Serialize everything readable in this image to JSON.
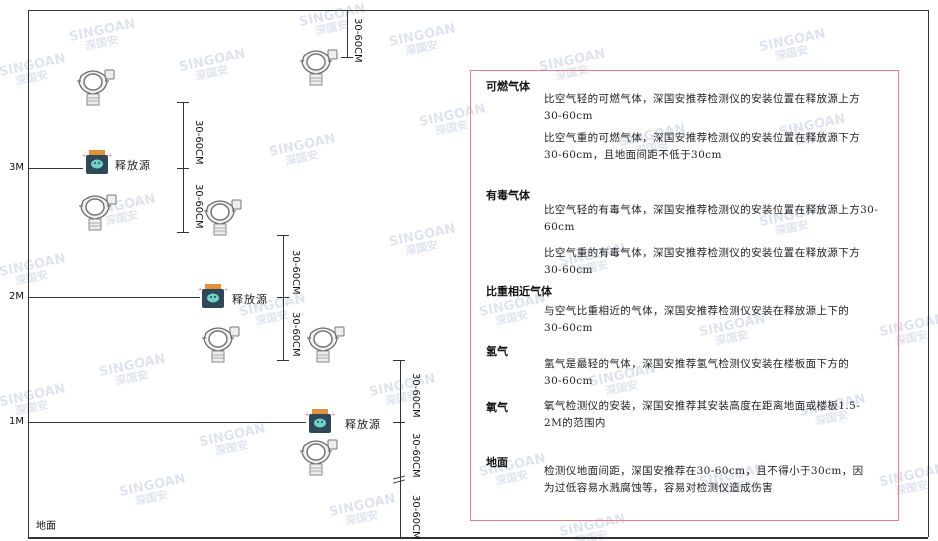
{
  "watermark": {
    "brand": "SINGOAN",
    "cn": "深国安"
  },
  "levels": [
    "3M",
    "2M",
    "1M"
  ],
  "ground_label": "地面",
  "source_label": "释放源",
  "dimension_label": "30-60CM",
  "notes": {
    "combustible": {
      "title": "可燃气体",
      "lighter": "比空气轻的可燃气体，深国安推荐检测仪的安装位置在释放源上方30-60cm",
      "heavier": "比空气重的可燃气体，深国安推荐检测仪的安装位置在释放源下方30-60cm，且地面间距不低于30cm"
    },
    "toxic": {
      "title": "有毒气体",
      "lighter": "比空气轻的有毒气体，深国安推荐检测仪的安装位置在释放源上方30-60cm",
      "heavier": "比空气重的有毒气体，深国安推荐检测仪的安装位置在释放源下方30-60cm"
    },
    "similar": {
      "title": "比重相近气体",
      "text": "与空气比重相近的气体，深国安推荐检测仪安装在释放源上下的30-60cm"
    },
    "hydrogen": {
      "title": "氢气",
      "text": "氢气是最轻的气体，深国安推荐氢气检测仪安装在楼板面下方的30-60cm"
    },
    "oxygen": {
      "title": "氧气",
      "text": "氧气检测仪的安装，深国安推荐其安装高度在距离地面或楼板1.5-2M的范围内"
    },
    "ground": {
      "title": "地面",
      "text": "检测仪地面间距，深国安推荐在30-60cm，且不得小于30cm，因为过低容易水溅腐蚀等，容易对检测仪造成伤害"
    }
  },
  "colors": {
    "box_border": "#e87d85",
    "source_body": "#2f4858",
    "source_cap": "#e0913a",
    "source_face": "#6fd3c8"
  }
}
